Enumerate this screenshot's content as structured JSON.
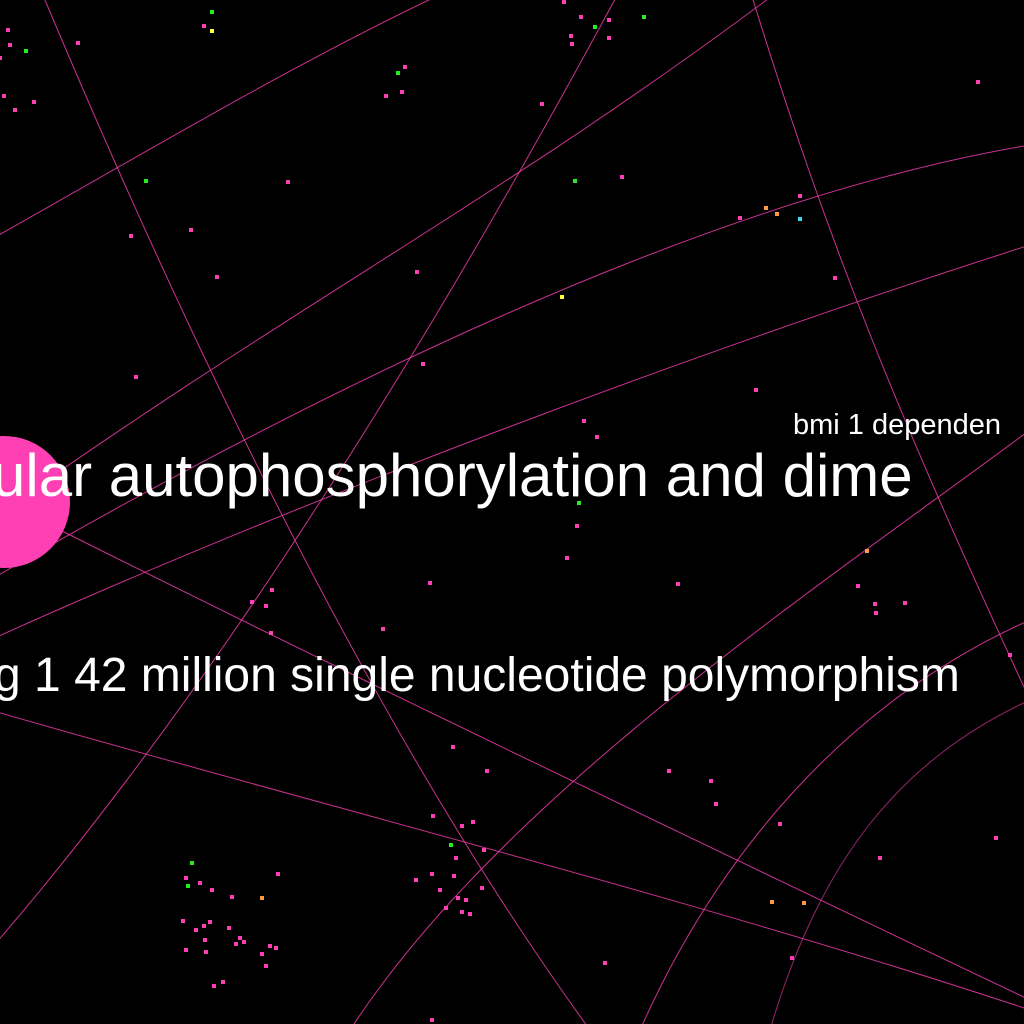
{
  "labels": {
    "large": "ular autophosphorylation and dime",
    "medium": "g 1 42 million single nucleotide polymorphism",
    "small": "bmi 1 dependen"
  },
  "colors": {
    "background": "#000000",
    "edge": "#ff3fb4",
    "node_pink": "#ff3fb4",
    "node_green": "#22ee22",
    "node_yellow": "#ffff33",
    "node_orange": "#ff9944",
    "node_cyan": "#33ddee",
    "text": "#ffffff"
  }
}
